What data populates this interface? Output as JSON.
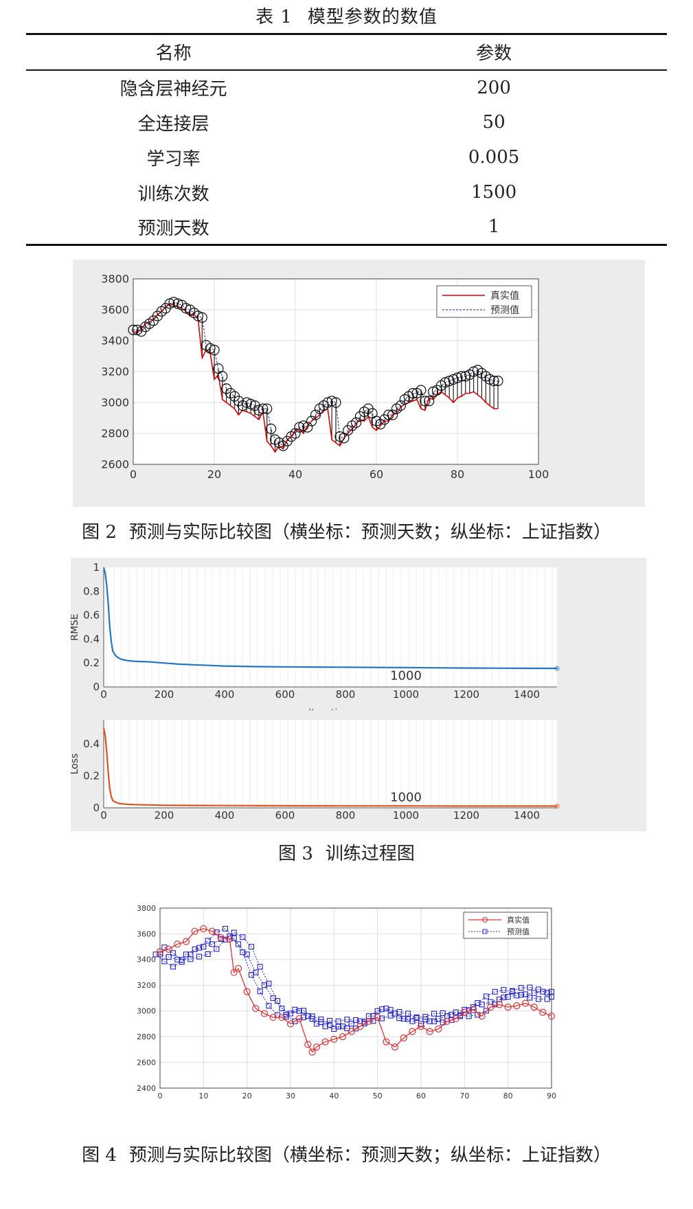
{
  "table": {
    "title_num": "表 1",
    "title_text": "模型参数的数值",
    "headers": [
      "名称",
      "参数"
    ],
    "rows": [
      {
        "name": "隐含层神经元",
        "value": "200"
      },
      {
        "name": "全连接层",
        "value": "50"
      },
      {
        "name": "学习率",
        "value": "0.005"
      },
      {
        "name": "训练次数",
        "value": "1500"
      },
      {
        "name": "预测天数",
        "value": "1"
      }
    ]
  },
  "captions": {
    "fig2_num": "图 2",
    "fig2_text": "预测与实际比较图（横坐标：预测天数；纵坐标：上证指数）",
    "fig3_num": "图 3",
    "fig3_text": "训练过程图",
    "fig4_num": "图 4",
    "fig4_text": "预测与实际比较图（横坐标：预测天数；纵坐标：上证指数）"
  },
  "chart_data": [
    {
      "id": "fig2",
      "type": "line",
      "xlim": [
        0,
        100
      ],
      "ylim": [
        2600,
        3800
      ],
      "xticks": [
        0,
        20,
        40,
        60,
        80,
        100
      ],
      "yticks": [
        2600,
        2800,
        3000,
        3200,
        3400,
        3600,
        3800
      ],
      "grid": true,
      "legend_position": "top-right",
      "series": [
        {
          "name": "真实值",
          "color": "#e00000",
          "style": "solid",
          "x": [
            0,
            1,
            2,
            3,
            4,
            5,
            6,
            7,
            8,
            9,
            10,
            11,
            12,
            13,
            14,
            15,
            16,
            17,
            18,
            19,
            20,
            21,
            22,
            23,
            24,
            25,
            26,
            27,
            28,
            29,
            30,
            31,
            32,
            33,
            34,
            35,
            36,
            37,
            38,
            39,
            40,
            41,
            42,
            43,
            44,
            45,
            46,
            47,
            48,
            49,
            50,
            51,
            52,
            53,
            54,
            55,
            56,
            57,
            58,
            59,
            60,
            61,
            62,
            63,
            64,
            65,
            66,
            67,
            68,
            69,
            70,
            71,
            72,
            73,
            74,
            75,
            76,
            77,
            78,
            79,
            80,
            81,
            82,
            83,
            84,
            85,
            86,
            87,
            88,
            89,
            90
          ],
          "y": [
            3460,
            3450,
            3480,
            3510,
            3520,
            3540,
            3570,
            3590,
            3620,
            3640,
            3630,
            3620,
            3610,
            3590,
            3560,
            3570,
            3540,
            3290,
            3340,
            3320,
            3150,
            3180,
            3020,
            3000,
            2980,
            2960,
            2920,
            2950,
            2940,
            2930,
            2910,
            2890,
            2940,
            2750,
            2720,
            2680,
            2720,
            2700,
            2760,
            2780,
            2820,
            2830,
            2800,
            2850,
            2880,
            2900,
            2920,
            2950,
            2960,
            2760,
            2740,
            2720,
            2770,
            2800,
            2830,
            2860,
            2890,
            2880,
            2910,
            2840,
            2820,
            2850,
            2880,
            2880,
            2920,
            2930,
            2970,
            2990,
            3000,
            3010,
            3020,
            2960,
            2950,
            3030,
            3020,
            3050,
            3070,
            3050,
            3030,
            3000,
            3030,
            3040,
            3060,
            3060,
            3070,
            3050,
            3030,
            3000,
            2980,
            2960,
            2960
          ]
        },
        {
          "name": "预测值",
          "color": "#4444aa",
          "style": "dashed",
          "x": [
            0,
            1,
            2,
            3,
            4,
            5,
            6,
            7,
            8,
            9,
            10,
            11,
            12,
            13,
            14,
            15,
            16,
            17,
            18,
            19,
            20,
            21,
            22,
            23,
            24,
            25,
            26,
            27,
            28,
            29,
            30,
            31,
            32,
            33,
            34,
            35,
            36,
            37,
            38,
            39,
            40,
            41,
            42,
            43,
            44,
            45,
            46,
            47,
            48,
            49,
            50,
            51,
            52,
            53,
            54,
            55,
            56,
            57,
            58,
            59,
            60,
            61,
            62,
            63,
            64,
            65,
            66,
            67,
            68,
            69,
            70,
            71,
            72,
            73,
            74,
            75,
            76,
            77,
            78,
            79,
            80,
            81,
            82,
            83,
            84,
            85,
            86,
            87,
            88,
            89,
            90
          ],
          "y": [
            3470,
            3470,
            3460,
            3490,
            3510,
            3530,
            3560,
            3590,
            3610,
            3640,
            3650,
            3640,
            3630,
            3610,
            3600,
            3580,
            3560,
            3550,
            3370,
            3350,
            3340,
            3220,
            3170,
            3090,
            3060,
            3040,
            3010,
            2980,
            3000,
            2990,
            2980,
            2950,
            2960,
            2960,
            2830,
            2760,
            2740,
            2720,
            2750,
            2780,
            2800,
            2840,
            2850,
            2840,
            2880,
            2920,
            2960,
            2980,
            3000,
            3010,
            3000,
            2780,
            2770,
            2820,
            2850,
            2870,
            2910,
            2940,
            2960,
            2930,
            2880,
            2860,
            2890,
            2920,
            2920,
            2960,
            2980,
            3020,
            3040,
            3060,
            3060,
            3080,
            3010,
            3010,
            3070,
            3080,
            3110,
            3130,
            3140,
            3150,
            3160,
            3170,
            3170,
            3180,
            3200,
            3210,
            3190,
            3170,
            3150,
            3140,
            3140
          ]
        }
      ]
    },
    {
      "id": "fig3_rmse",
      "type": "line",
      "xlim": [
        0,
        1500
      ],
      "ylim": [
        0,
        1
      ],
      "xticks": [
        0,
        200,
        400,
        600,
        800,
        1000,
        1200,
        1400
      ],
      "yticks": [
        0,
        0.2,
        0.4,
        0.6,
        0.8,
        1
      ],
      "ylabel": "RMSE",
      "xlabel": "Iteration",
      "annotation": "1000",
      "series": [
        {
          "name": "",
          "color": "#1f77c4",
          "x": [
            0,
            5,
            10,
            15,
            20,
            25,
            30,
            40,
            50,
            60,
            80,
            100,
            150,
            200,
            250,
            300,
            350,
            400,
            500,
            600,
            700,
            800,
            900,
            1000,
            1100,
            1200,
            1300,
            1400,
            1500
          ],
          "y": [
            1.0,
            0.95,
            0.85,
            0.7,
            0.5,
            0.38,
            0.3,
            0.26,
            0.24,
            0.23,
            0.22,
            0.215,
            0.21,
            0.2,
            0.19,
            0.185,
            0.18,
            0.175,
            0.17,
            0.168,
            0.166,
            0.165,
            0.163,
            0.162,
            0.16,
            0.158,
            0.157,
            0.156,
            0.155
          ]
        }
      ]
    },
    {
      "id": "fig3_loss",
      "type": "line",
      "xlim": [
        0,
        1500
      ],
      "ylim": [
        0,
        0.55
      ],
      "xticks": [
        0,
        200,
        400,
        600,
        800,
        1000,
        1200,
        1400
      ],
      "yticks": [
        0,
        0.2,
        0.4
      ],
      "ylabel": "Loss",
      "annotation": "1000",
      "series": [
        {
          "name": "",
          "color": "#e0521c",
          "x": [
            0,
            5,
            10,
            15,
            20,
            25,
            30,
            40,
            50,
            60,
            80,
            100,
            150,
            200,
            300,
            400,
            600,
            800,
            1000,
            1200,
            1400,
            1500
          ],
          "y": [
            0.5,
            0.45,
            0.35,
            0.22,
            0.12,
            0.07,
            0.045,
            0.035,
            0.028,
            0.025,
            0.022,
            0.02,
            0.018,
            0.016,
            0.015,
            0.014,
            0.013,
            0.012,
            0.012,
            0.011,
            0.011,
            0.011
          ]
        }
      ]
    },
    {
      "id": "fig4",
      "type": "line",
      "xlim": [
        0,
        90
      ],
      "ylim": [
        2400,
        3800
      ],
      "xticks": [
        0,
        10,
        20,
        30,
        40,
        50,
        60,
        70,
        80,
        90
      ],
      "yticks": [
        2400,
        2600,
        2800,
        3000,
        3200,
        3400,
        3600,
        3800
      ],
      "grid": true,
      "legend_position": "top-right",
      "series": [
        {
          "name": "真实值",
          "color": "#e03030",
          "marker": "circle",
          "x": [
            0,
            2,
            4,
            6,
            8,
            10,
            12,
            14,
            16,
            17,
            18,
            20,
            22,
            24,
            26,
            28,
            30,
            32,
            34,
            35,
            36,
            38,
            40,
            42,
            44,
            46,
            48,
            50,
            52,
            54,
            56,
            58,
            60,
            62,
            64,
            66,
            68,
            70,
            72,
            74,
            76,
            78,
            80,
            82,
            84,
            86,
            88,
            90
          ],
          "y": [
            3460,
            3480,
            3520,
            3540,
            3620,
            3640,
            3620,
            3570,
            3560,
            3300,
            3330,
            3150,
            3020,
            2980,
            2950,
            2950,
            2900,
            2940,
            2740,
            2680,
            2720,
            2760,
            2780,
            2800,
            2840,
            2880,
            2920,
            2950,
            2760,
            2720,
            2790,
            2840,
            2880,
            2840,
            2860,
            2920,
            2940,
            2990,
            3010,
            2960,
            3030,
            3050,
            3030,
            3040,
            3060,
            3030,
            2990,
            2960
          ]
        },
        {
          "name": "预测值",
          "color": "#2020d0",
          "marker": "square",
          "style": "dotted",
          "x": [
            0,
            2,
            4,
            6,
            8,
            10,
            12,
            14,
            16,
            18,
            20,
            22,
            24,
            26,
            28,
            30,
            32,
            34,
            36,
            38,
            40,
            42,
            44,
            46,
            48,
            50,
            52,
            54,
            56,
            58,
            60,
            62,
            64,
            66,
            68,
            70,
            72,
            74,
            76,
            78,
            80,
            82,
            84,
            86,
            88,
            90
          ],
          "y": [
            3440,
            3420,
            3400,
            3440,
            3480,
            3500,
            3520,
            3560,
            3580,
            3520,
            3440,
            3300,
            3200,
            3100,
            3020,
            2980,
            3000,
            2960,
            2900,
            2880,
            2860,
            2880,
            2900,
            2920,
            2960,
            3000,
            3020,
            2980,
            2940,
            2920,
            2900,
            2920,
            2940,
            2960,
            2990,
            3010,
            3030,
            3050,
            3070,
            3090,
            3110,
            3120,
            3130,
            3140,
            3150,
            3150
          ]
        }
      ]
    }
  ]
}
